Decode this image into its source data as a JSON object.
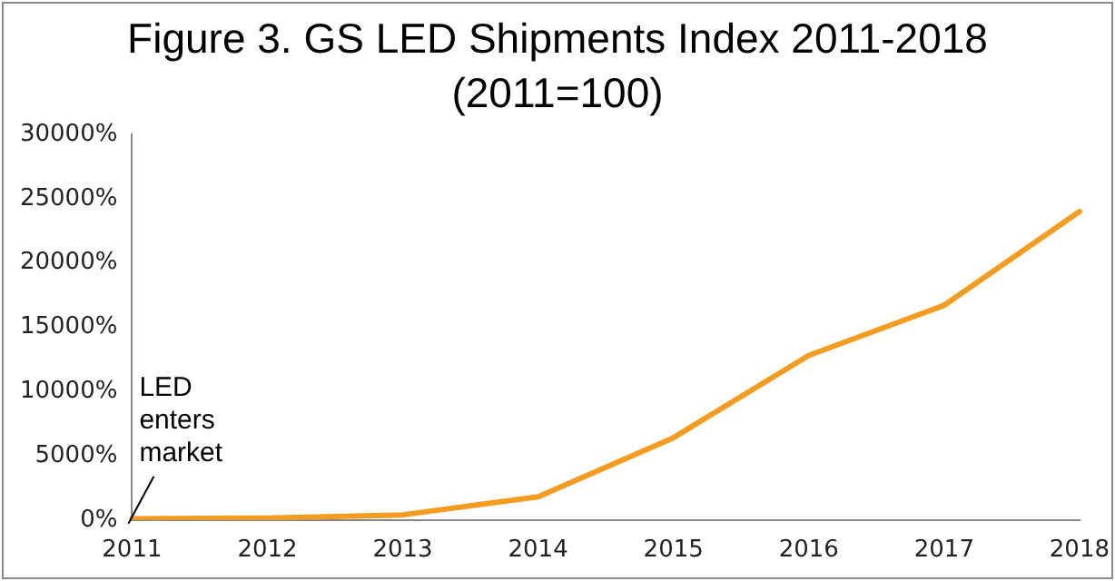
{
  "chart_data": {
    "type": "line",
    "title": "Figure 3. GS LED Shipments Index 2011-2018\n(2011=100)",
    "categories": [
      "2011",
      "2012",
      "2013",
      "2014",
      "2015",
      "2016",
      "2017",
      "2018"
    ],
    "series": [
      {
        "color": "#f39c1f",
        "values": [
          100,
          150,
          400,
          1800,
          6400,
          12800,
          16700,
          24000
        ]
      }
    ],
    "ylim": [
      0,
      30000
    ],
    "yticks": [
      {
        "value": 0,
        "label": "0%"
      },
      {
        "value": 5000,
        "label": "5000%"
      },
      {
        "value": 10000,
        "label": "10000%"
      },
      {
        "value": 15000,
        "label": "15000%"
      },
      {
        "value": 20000,
        "label": "20000%"
      },
      {
        "value": 25000,
        "label": "25000%"
      },
      {
        "value": 30000,
        "label": "30000%"
      }
    ],
    "annotations": [
      {
        "text": "LED\nenters\nmarket",
        "x": "2011",
        "y": 0
      }
    ],
    "grid": false,
    "legend": false,
    "marker": "none",
    "line_style": "solid"
  }
}
